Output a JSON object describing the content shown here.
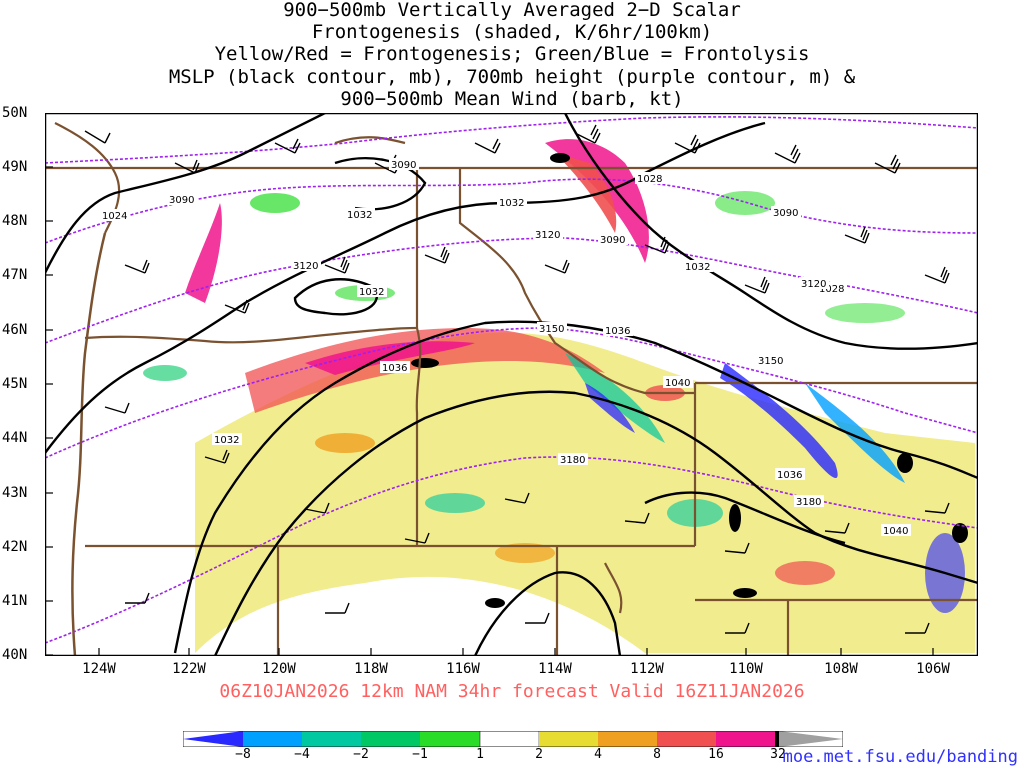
{
  "title": {
    "lines": [
      "900−500mb Vertically Averaged 2−D Scalar",
      "Frontogenesis (shaded, K/6hr/100km)",
      "Yellow/Red = Frontogenesis;  Green/Blue = Frontolysis",
      "MSLP (black contour, mb), 700mb height (purple contour, m) &",
      "900−500mb Mean Wind (barb, kt)"
    ]
  },
  "axes": {
    "lat_labels": [
      "50N",
      "49N",
      "48N",
      "47N",
      "46N",
      "45N",
      "44N",
      "43N",
      "42N",
      "41N",
      "40N"
    ],
    "lon_labels": [
      "124W",
      "122W",
      "120W",
      "118W",
      "116W",
      "114W",
      "112W",
      "110W",
      "108W",
      "106W"
    ],
    "lat_range": [
      40,
      50
    ],
    "lon_range": [
      -125,
      -105
    ]
  },
  "contours": {
    "mslp_labels": [
      "1024",
      "1032",
      "1032",
      "1032",
      "1028",
      "1032",
      "1036",
      "1036",
      "1040",
      "1036",
      "1040",
      "1028",
      "1032"
    ],
    "height_labels": [
      "3090",
      "3090",
      "3120",
      "3120",
      "3090",
      "3090",
      "3120",
      "3150",
      "3150",
      "3180",
      "3180"
    ]
  },
  "footer": {
    "run_text": "06Z10JAN2026 12km NAM 34hr forecast Valid 16Z11JAN2026",
    "credit": "moe.met.fsu.edu/banding"
  },
  "colorbar": {
    "labels": [
      "−8",
      "−4",
      "−2",
      "−1",
      "1",
      "2",
      "4",
      "8",
      "16",
      "32"
    ],
    "colors": [
      "#2828ff",
      "#00a0ff",
      "#00c8a0",
      "#00c864",
      "#28dc28",
      "#ffffff",
      "#e6dc32",
      "#f0a020",
      "#f05050",
      "#f0148c",
      "#000000",
      "#a0a0a0"
    ]
  },
  "palette": {
    "mslp_contour": "#000000",
    "height_contour": "#a020f0",
    "borders": "#7a5230",
    "barbs": "#000000"
  }
}
